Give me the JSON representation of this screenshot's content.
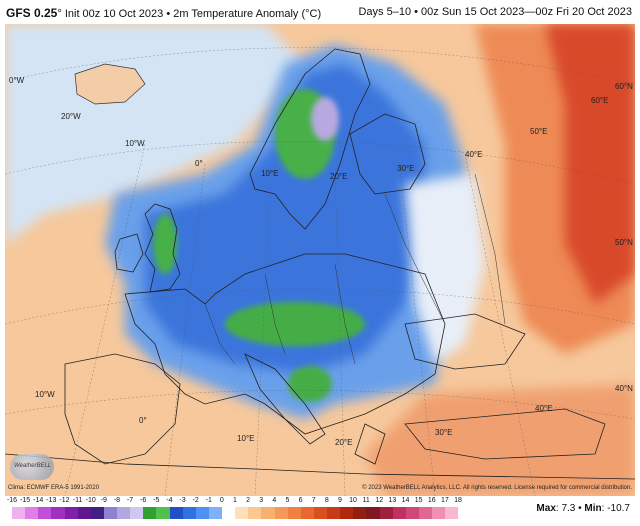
{
  "header": {
    "model": "GFS 0.25",
    "degree": "°",
    "init": "Init 00z 10 Oct 2023",
    "bullet": "•",
    "product": "2m Temperature Anomaly (°C)",
    "range": "Days 5–10 • 00z Sun 15 Oct 2023—00z Fri 20 Oct 2023"
  },
  "map": {
    "lon_labels": [
      {
        "text": "0°W",
        "id": "lon-0w"
      },
      {
        "text": "20°W",
        "id": "lon-20w"
      },
      {
        "text": "10°W",
        "id": "lon-10w-top"
      },
      {
        "text": "0°",
        "id": "lon-0"
      },
      {
        "text": "10°E",
        "id": "lon-10e"
      },
      {
        "text": "20°E",
        "id": "lon-20e"
      },
      {
        "text": "30°E",
        "id": "lon-30e"
      },
      {
        "text": "40°E",
        "id": "lon-40e"
      },
      {
        "text": "50°E",
        "id": "lon-50e"
      },
      {
        "text": "60°E",
        "id": "lon-60e"
      },
      {
        "text": "60°N",
        "id": "lat-60n"
      },
      {
        "text": "50°N",
        "id": "lat-50n"
      },
      {
        "text": "40°N",
        "id": "lat-40n"
      },
      {
        "text": "10°W",
        "id": "lon-10w-bottom"
      },
      {
        "text": "0°",
        "id": "lon-0-bottom"
      },
      {
        "text": "10°E",
        "id": "lon-10e-bottom"
      },
      {
        "text": "20°E",
        "id": "lon-20e-bottom"
      },
      {
        "text": "30°E",
        "id": "lon-30e-bottom"
      },
      {
        "text": "40°E",
        "id": "lon-40e-bottom"
      }
    ]
  },
  "footer": {
    "clim": "Clima: ECMWF ERA-5 1991-2020",
    "copyright": "© 2023 WeatherBELL Analytics, LLC. All rights reserved. License required for commercial distribution.",
    "logo": "WeatherBELL"
  },
  "colorbar": {
    "ticks": [
      "-16",
      "-15",
      "-14",
      "-13",
      "-12",
      "-11",
      "-10",
      "-9",
      "-8",
      "-7",
      "-6",
      "-5",
      "-4",
      "-3",
      "-2",
      "-1",
      "0",
      "1",
      "2",
      "3",
      "4",
      "5",
      "6",
      "7",
      "8",
      "9",
      "10",
      "11",
      "12",
      "13",
      "14",
      "15",
      "16",
      "17",
      "18"
    ],
    "colors": [
      "#f0b0f0",
      "#e07ee8",
      "#c050d8",
      "#a030c0",
      "#8020a8",
      "#601890",
      "#402080",
      "#9080d0",
      "#b0a8e0",
      "#d0c8f0",
      "#30a030",
      "#50c050",
      "#204fc8",
      "#3070e0",
      "#5090f0",
      "#80b0f8",
      "#ffffff",
      "#fde0b8",
      "#fbc890",
      "#f8b070",
      "#f59858",
      "#f08040",
      "#e86830",
      "#d85020",
      "#c83a18",
      "#b02810",
      "#902010",
      "#801820",
      "#a02040",
      "#c03060",
      "#d04878",
      "#e06890",
      "#f090b0",
      "#f8b8d0"
    ]
  },
  "stats": {
    "max_label": "Max",
    "max": "7.3",
    "min_label": "Min",
    "min": "-10.7",
    "sep": "•"
  }
}
